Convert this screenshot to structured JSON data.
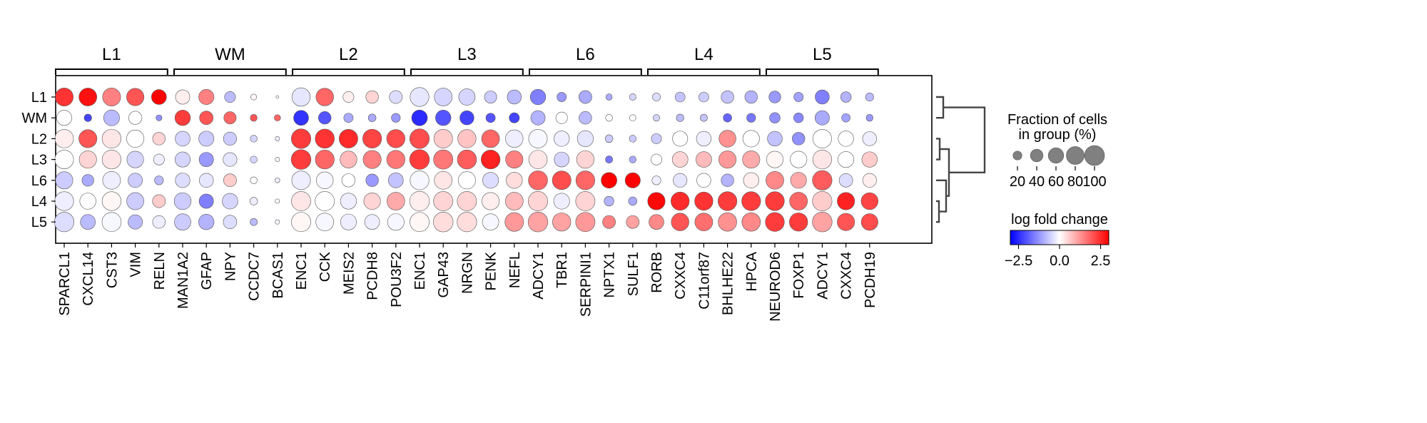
{
  "chart_data": {
    "type": "dotplot",
    "groups": [
      "L1",
      "WM",
      "L2",
      "L3",
      "L6",
      "L4",
      "L5"
    ],
    "gene_groups": [
      {
        "label": "L1",
        "genes": [
          "SPARCL1",
          "CXCL14",
          "CST3",
          "VIM",
          "RELN"
        ]
      },
      {
        "label": "WM",
        "genes": [
          "MAN1A2",
          "GFAP",
          "NPY",
          "CCDC7",
          "BCAS1"
        ]
      },
      {
        "label": "L2",
        "genes": [
          "ENC1",
          "CCK",
          "MEIS2",
          "PCDH8",
          "POU3F2"
        ]
      },
      {
        "label": "L3",
        "genes": [
          "ENC1",
          "GAP43",
          "NRGN",
          "PENK",
          "NEFL"
        ]
      },
      {
        "label": "L6",
        "genes": [
          "ADCY1",
          "TBR1",
          "SERPINI1",
          "NPTX1",
          "SULF1"
        ]
      },
      {
        "label": "L4",
        "genes": [
          "RORB",
          "CXXC4",
          "C11orf87",
          "BHLHE22",
          "HPCA"
        ]
      },
      {
        "label": "L5",
        "genes": [
          "NEUROD6",
          "FOXP1",
          "ADCY1",
          "CXXC4",
          "PCDH19"
        ]
      }
    ],
    "fraction_pct": [
      [
        82,
        80,
        82,
        76,
        56,
        52,
        58,
        30,
        9,
        2,
        85,
        78,
        30,
        40,
        42,
        90,
        80,
        68,
        38,
        50,
        60,
        22,
        42,
        10,
        11,
        16,
        25,
        25,
        40,
        40,
        35,
        22,
        50,
        28,
        17
      ],
      [
        58,
        14,
        63,
        44,
        9,
        60,
        46,
        38,
        12,
        10,
        56,
        40,
        22,
        15,
        20,
        62,
        60,
        50,
        22,
        26,
        52,
        34,
        40,
        12,
        10,
        11,
        14,
        13,
        18,
        20,
        28,
        24,
        52,
        18,
        12
      ],
      [
        86,
        82,
        90,
        76,
        40,
        56,
        58,
        44,
        12,
        5,
        96,
        92,
        88,
        90,
        84,
        96,
        88,
        84,
        80,
        78,
        88,
        60,
        65,
        15,
        12,
        26,
        58,
        55,
        72,
        70,
        55,
        40,
        88,
        60,
        50
      ],
      [
        88,
        76,
        90,
        70,
        30,
        58,
        52,
        48,
        12,
        5,
        98,
        90,
        72,
        82,
        84,
        98,
        94,
        92,
        90,
        76,
        86,
        56,
        78,
        13,
        12,
        30,
        62,
        62,
        76,
        76,
        70,
        70,
        90,
        64,
        60
      ],
      [
        75,
        35,
        80,
        52,
        20,
        54,
        50,
        42,
        12,
        6,
        88,
        72,
        44,
        40,
        56,
        90,
        80,
        76,
        64,
        66,
        92,
        88,
        90,
        62,
        58,
        20,
        48,
        50,
        40,
        60,
        80,
        64,
        96,
        46,
        48
      ],
      [
        90,
        66,
        90,
        74,
        42,
        72,
        52,
        62,
        15,
        5,
        94,
        94,
        65,
        70,
        80,
        98,
        94,
        94,
        76,
        80,
        96,
        64,
        94,
        24,
        18,
        76,
        84,
        84,
        90,
        90,
        90,
        80,
        96,
        76,
        72
      ],
      [
        96,
        56,
        92,
        52,
        40,
        68,
        60,
        46,
        13,
        5,
        94,
        80,
        64,
        56,
        70,
        94,
        98,
        96,
        68,
        88,
        98,
        84,
        94,
        42,
        42,
        56,
        78,
        80,
        86,
        86,
        90,
        84,
        98,
        76,
        70
      ]
    ],
    "log_fold_change": [
      [
        2.4,
        2.8,
        1.5,
        2.0,
        3.0,
        0.2,
        1.5,
        -0.8,
        0.1,
        0.0,
        -0.3,
        1.8,
        0.2,
        0.5,
        -0.4,
        -0.3,
        -0.5,
        -0.5,
        -0.6,
        -0.8,
        -1.5,
        -1.2,
        -1.0,
        -1.0,
        -0.5,
        -0.4,
        -0.7,
        -0.6,
        -0.7,
        -0.9,
        -1.2,
        -1.1,
        -1.5,
        -0.9,
        -0.8
      ],
      [
        0.0,
        -2.2,
        -0.8,
        0.0,
        -1.3,
        2.3,
        2.0,
        1.8,
        2.0,
        1.8,
        -2.4,
        -2.0,
        -1.0,
        -1.0,
        -1.2,
        -2.5,
        -2.0,
        -2.2,
        -2.0,
        -2.2,
        -0.9,
        0.0,
        -0.8,
        0.0,
        0.0,
        -0.5,
        -0.8,
        -0.7,
        -1.8,
        -1.6,
        -1.3,
        -1.4,
        -1.0,
        -1.1,
        -1.2
      ],
      [
        0.2,
        2.0,
        0.3,
        0.0,
        0.5,
        -0.5,
        -0.6,
        -0.6,
        -0.5,
        -0.2,
        2.3,
        2.4,
        2.5,
        2.2,
        2.1,
        2.1,
        0.6,
        0.7,
        1.8,
        -0.2,
        -0.1,
        -0.2,
        -0.3,
        -0.6,
        -0.6,
        -0.6,
        0.0,
        -0.2,
        1.3,
        0.0,
        -0.7,
        -1.3,
        0.0,
        0.0,
        -0.2
      ],
      [
        0.0,
        0.5,
        0.3,
        -0.5,
        -0.2,
        -0.5,
        -1.2,
        -0.3,
        -0.5,
        -0.1,
        2.3,
        1.8,
        0.8,
        1.5,
        1.6,
        2.3,
        1.6,
        1.9,
        2.6,
        1.5,
        0.3,
        -0.5,
        0.5,
        -1.6,
        -1.0,
        0.0,
        0.5,
        0.8,
        1.2,
        1.0,
        0.1,
        0.0,
        0.3,
        0.0,
        0.6
      ],
      [
        -0.6,
        -1.0,
        -0.2,
        -0.6,
        -0.8,
        -0.4,
        -0.3,
        0.6,
        0.0,
        -0.2,
        -0.2,
        -0.1,
        0.0,
        -1.2,
        -0.7,
        -0.1,
        0.3,
        0.0,
        -0.4,
        0.4,
        1.8,
        2.1,
        1.8,
        3.0,
        3.0,
        -0.2,
        -0.3,
        0.0,
        -0.9,
        0.2,
        1.4,
        1.0,
        1.9,
        -0.4,
        0.2
      ],
      [
        -0.2,
        0.0,
        0.1,
        -0.6,
        0.6,
        -0.6,
        -1.5,
        -0.5,
        -0.2,
        -0.1,
        0.3,
        0.0,
        -0.2,
        0.5,
        1.0,
        0.2,
        0.5,
        0.5,
        0.2,
        0.8,
        0.5,
        -0.2,
        0.5,
        -0.9,
        -1.0,
        2.9,
        2.5,
        2.4,
        2.3,
        2.3,
        2.3,
        1.8,
        0.6,
        2.6,
        2.2
      ],
      [
        -0.4,
        -0.8,
        -0.1,
        -0.8,
        -0.2,
        -0.6,
        -0.9,
        -0.4,
        -0.8,
        -0.1,
        0.1,
        -0.1,
        -0.2,
        -0.2,
        -0.1,
        0.1,
        0.4,
        0.4,
        -0.1,
        1.2,
        1.1,
        1.1,
        1.2,
        1.5,
        1.1,
        1.4,
        2.0,
        1.7,
        1.3,
        1.4,
        2.3,
        2.3,
        1.1,
        2.0,
        2.1
      ]
    ],
    "size_legend": {
      "title_lines": [
        "Fraction of cells",
        "in group (%)"
      ],
      "ticks": [
        20,
        40,
        60,
        80,
        100
      ]
    },
    "color_legend": {
      "title": "log fold change",
      "colormap": [
        "#0000ff",
        "#ffffff",
        "#ff0000"
      ],
      "vmin": -3,
      "vmax": 3,
      "ticks": [
        -2.5,
        0.0,
        2.5
      ],
      "tick_labels": [
        "−2.5",
        "0.0",
        "2.5"
      ]
    },
    "dendrogram": "right"
  }
}
